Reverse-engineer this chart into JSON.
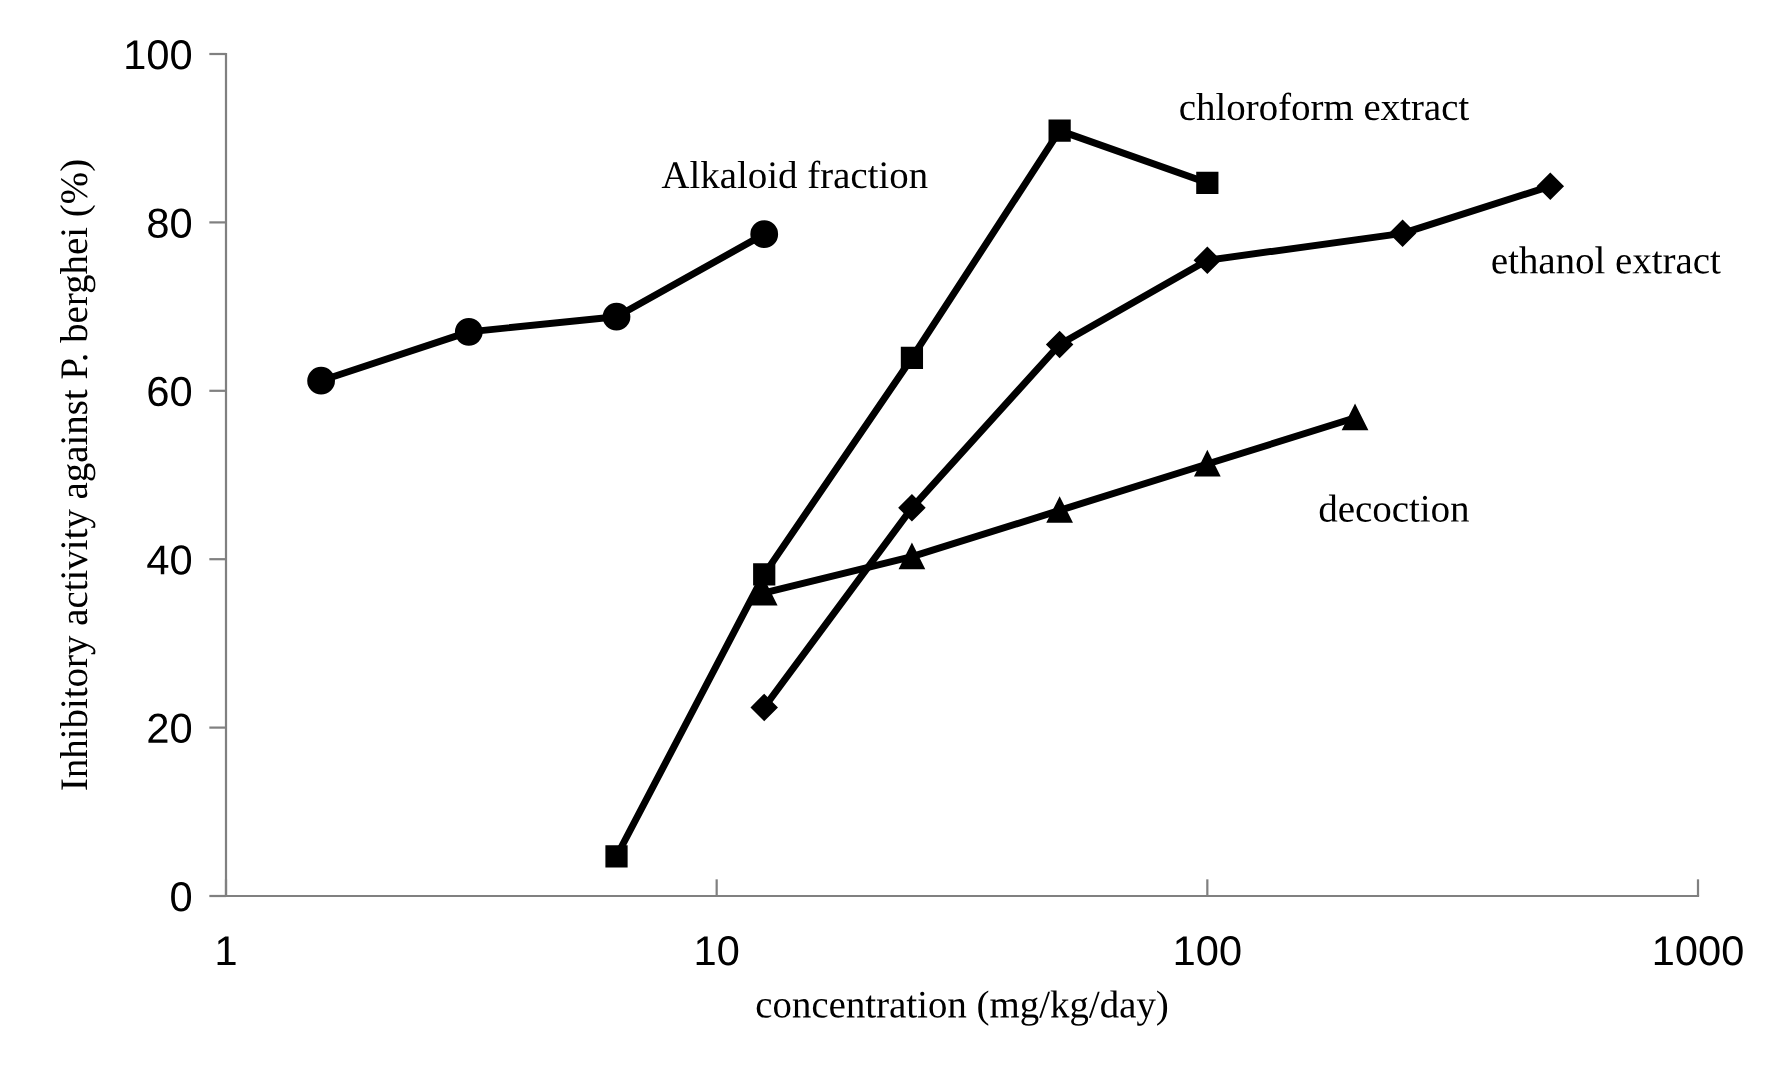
{
  "chart_data": {
    "type": "line",
    "xlabel": "concentration (mg/kg/day)",
    "ylabel": "Inhibitory activity against P. berghei (%)",
    "log": "x",
    "xlim": [
      1,
      1000
    ],
    "xticks": [
      1,
      10,
      100,
      1000
    ],
    "ylim": [
      0,
      100
    ],
    "yticks": [
      0,
      20,
      40,
      60,
      80,
      100
    ],
    "grid": false,
    "legend": false,
    "line_style": "solid",
    "series": [
      {
        "name": "Alkaloid fraction",
        "color": "#000000",
        "marker": "circle",
        "x": [
          1.5625,
          3.125,
          6.25,
          12.5
        ],
        "values": [
          61.2,
          67.0,
          68.8,
          78.6
        ]
      },
      {
        "name": "chloroform extract",
        "color": "#000000",
        "marker": "square",
        "x": [
          6.25,
          12.5,
          25,
          50,
          100
        ],
        "values": [
          4.7,
          38.2,
          63.9,
          90.9,
          84.7
        ]
      },
      {
        "name": "ethanol extract",
        "color": "#000000",
        "marker": "diamond",
        "x": [
          12.5,
          25,
          50,
          100,
          250,
          500
        ],
        "values": [
          22.4,
          46.1,
          65.5,
          75.5,
          78.7,
          84.3
        ]
      },
      {
        "name": "decoction",
        "color": "#000000",
        "marker": "triangle",
        "x": [
          12.5,
          25,
          50,
          100,
          200
        ],
        "values": [
          36.0,
          40.3,
          45.8,
          51.3,
          56.8
        ]
      }
    ]
  }
}
